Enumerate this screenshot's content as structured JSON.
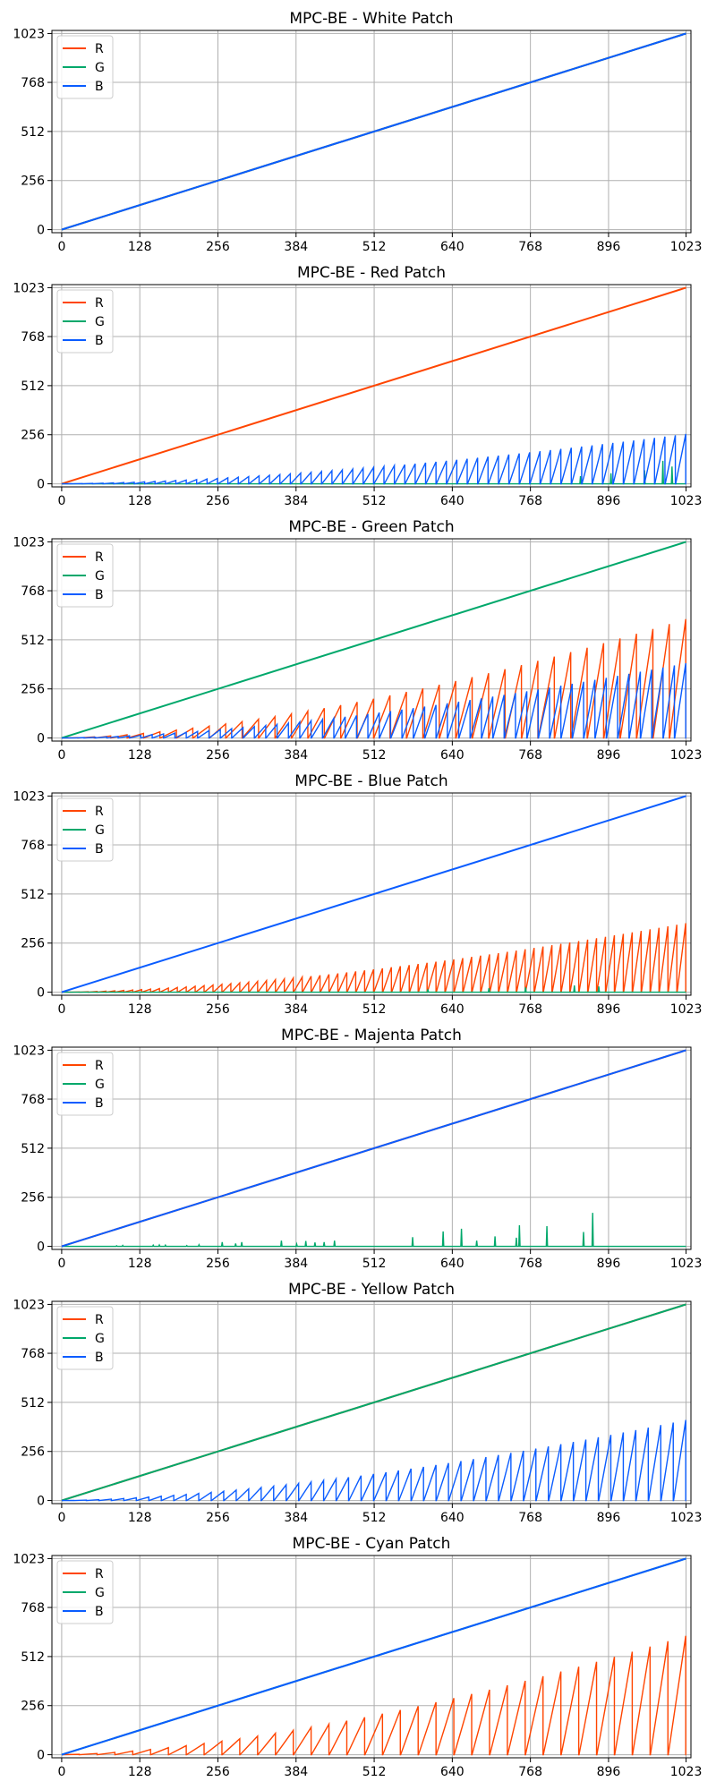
{
  "figure": {
    "colors": {
      "R": "#ff4500",
      "G": "#00a86b",
      "B": "#0a5cff"
    }
  },
  "chart_data": [
    {
      "type": "line",
      "title": "MPC-BE - White Patch",
      "xlabel": "",
      "ylabel": "",
      "xlim": [
        0,
        1023
      ],
      "ylim": [
        0,
        1023
      ],
      "xticks": [
        0,
        128,
        256,
        384,
        512,
        640,
        768,
        896,
        1023
      ],
      "yticks": [
        0,
        256,
        512,
        768,
        1023
      ],
      "grid": true,
      "legend": "top-left",
      "series": [
        {
          "name": "R",
          "pattern": "linear",
          "end": 1023
        },
        {
          "name": "G",
          "pattern": "linear",
          "end": 1023
        },
        {
          "name": "B",
          "pattern": "linear",
          "end": 1023
        }
      ]
    },
    {
      "type": "line",
      "title": "MPC-BE - Red Patch",
      "xlabel": "",
      "ylabel": "",
      "xlim": [
        0,
        1023
      ],
      "ylim": [
        0,
        1023
      ],
      "xticks": [
        0,
        128,
        256,
        384,
        512,
        640,
        768,
        896,
        1023
      ],
      "yticks": [
        0,
        256,
        512,
        768,
        1023
      ],
      "grid": true,
      "legend": "top-left",
      "series": [
        {
          "name": "R",
          "pattern": "linear",
          "end": 1023
        },
        {
          "name": "G",
          "pattern": "spikes",
          "spikes": [
            [
              850,
              40
            ],
            [
              900,
              55
            ],
            [
              955,
              70
            ],
            [
              985,
              120
            ],
            [
              1000,
              90
            ]
          ]
        },
        {
          "name": "B",
          "pattern": "sawtooth",
          "max": 260,
          "segments": 60
        }
      ]
    },
    {
      "type": "line",
      "title": "MPC-BE - Green Patch",
      "xlabel": "",
      "ylabel": "",
      "xlim": [
        0,
        1023
      ],
      "ylim": [
        0,
        1023
      ],
      "xticks": [
        0,
        128,
        256,
        384,
        512,
        640,
        768,
        896,
        1023
      ],
      "yticks": [
        0,
        256,
        512,
        768,
        1023
      ],
      "grid": true,
      "legend": "top-left",
      "series": [
        {
          "name": "R",
          "pattern": "sawtooth",
          "max": 620,
          "segments": 38
        },
        {
          "name": "G",
          "pattern": "linear",
          "end": 1023
        },
        {
          "name": "B",
          "pattern": "sawtooth",
          "max": 390,
          "segments": 55
        }
      ]
    },
    {
      "type": "line",
      "title": "MPC-BE - Blue Patch",
      "xlabel": "",
      "ylabel": "",
      "xlim": [
        0,
        1023
      ],
      "ylim": [
        0,
        1023
      ],
      "xticks": [
        0,
        128,
        256,
        384,
        512,
        640,
        768,
        896,
        1023
      ],
      "yticks": [
        0,
        256,
        512,
        768,
        1023
      ],
      "grid": true,
      "legend": "top-left",
      "series": [
        {
          "name": "R",
          "pattern": "sawtooth",
          "max": 360,
          "segments": 70
        },
        {
          "name": "G",
          "pattern": "spikes",
          "spikes": [
            [
              600,
              15
            ],
            [
              700,
              20
            ],
            [
              760,
              25
            ],
            [
              840,
              35
            ],
            [
              880,
              30
            ]
          ]
        },
        {
          "name": "B",
          "pattern": "linear",
          "end": 1023
        }
      ]
    },
    {
      "type": "line",
      "title": "MPC-BE - Majenta Patch",
      "xlabel": "",
      "ylabel": "",
      "xlim": [
        0,
        1023
      ],
      "ylim": [
        0,
        1023
      ],
      "xticks": [
        0,
        128,
        256,
        384,
        512,
        640,
        768,
        896,
        1023
      ],
      "yticks": [
        0,
        256,
        512,
        768,
        1023
      ],
      "grid": true,
      "legend": "top-left",
      "series": [
        {
          "name": "R",
          "pattern": "linear",
          "end": 1023
        },
        {
          "name": "G",
          "pattern": "spikes",
          "spikes": [
            [
              90,
              3
            ],
            [
              100,
              5
            ],
            [
              150,
              6
            ],
            [
              160,
              7
            ],
            [
              170,
              6
            ],
            [
              205,
              4
            ],
            [
              225,
              8
            ],
            [
              263,
              22
            ],
            [
              285,
              15
            ],
            [
              295,
              22
            ],
            [
              360,
              30
            ],
            [
              385,
              12
            ],
            [
              400,
              28
            ],
            [
              415,
              20
            ],
            [
              430,
              22
            ],
            [
              447,
              30
            ],
            [
              575,
              48
            ],
            [
              625,
              78
            ],
            [
              655,
              92
            ],
            [
              680,
              30
            ],
            [
              710,
              52
            ],
            [
              745,
              45
            ],
            [
              750,
              110
            ],
            [
              795,
              105
            ],
            [
              855,
              75
            ],
            [
              870,
              175
            ]
          ]
        },
        {
          "name": "B",
          "pattern": "linear",
          "end": 1023
        }
      ]
    },
    {
      "type": "line",
      "title": "MPC-BE - Yellow Patch",
      "xlabel": "",
      "ylabel": "",
      "xlim": [
        0,
        1023
      ],
      "ylim": [
        0,
        1023
      ],
      "xticks": [
        0,
        128,
        256,
        384,
        512,
        640,
        768,
        896,
        1023
      ],
      "yticks": [
        0,
        256,
        512,
        768,
        1023
      ],
      "grid": true,
      "legend": "top-left",
      "series": [
        {
          "name": "R",
          "pattern": "linear",
          "end": 1023
        },
        {
          "name": "G",
          "pattern": "linear",
          "end": 1023
        },
        {
          "name": "B",
          "pattern": "sawtooth",
          "max": 420,
          "segments": 50
        }
      ]
    },
    {
      "type": "line",
      "title": "MPC-BE - Cyan Patch",
      "xlabel": "",
      "ylabel": "",
      "xlim": [
        0,
        1023
      ],
      "ylim": [
        0,
        1023
      ],
      "xticks": [
        0,
        128,
        256,
        384,
        512,
        640,
        768,
        896,
        1023
      ],
      "yticks": [
        0,
        256,
        512,
        768,
        1023
      ],
      "grid": true,
      "legend": "top-left",
      "series": [
        {
          "name": "R",
          "pattern": "sawtooth",
          "max": 620,
          "segments": 35
        },
        {
          "name": "G",
          "pattern": "linear",
          "end": 1023
        },
        {
          "name": "B",
          "pattern": "linear",
          "end": 1023
        }
      ]
    }
  ]
}
